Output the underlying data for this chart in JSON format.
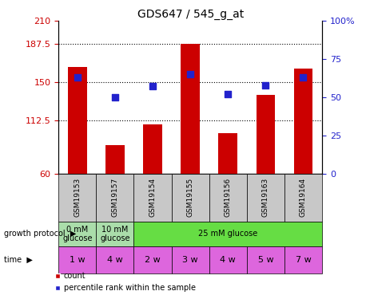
{
  "title": "GDS647 / 545_g_at",
  "samples": [
    "GSM19153",
    "GSM19157",
    "GSM19154",
    "GSM19155",
    "GSM19156",
    "GSM19163",
    "GSM19164"
  ],
  "bar_values": [
    165,
    88,
    108,
    187.5,
    100,
    137,
    163
  ],
  "blue_values": [
    63,
    50,
    57,
    65,
    52,
    58,
    63
  ],
  "ylim_left": [
    60,
    210
  ],
  "ylim_right": [
    0,
    100
  ],
  "yticks_left": [
    60,
    112.5,
    150,
    187.5,
    210
  ],
  "yticks_right": [
    0,
    25,
    50,
    75,
    100
  ],
  "bar_color": "#cc0000",
  "blue_color": "#2222cc",
  "grid_lines": [
    112.5,
    150,
    187.5
  ],
  "time_labels": [
    "1 w",
    "4 w",
    "2 w",
    "3 w",
    "4 w",
    "5 w",
    "7 w"
  ],
  "time_color": "#dd66dd",
  "sample_bg_color": "#c8c8c8",
  "protocol_data": [
    {
      "start": 0,
      "end": 1,
      "label": "0 mM\nglucose",
      "color": "#aaddaa"
    },
    {
      "start": 1,
      "end": 2,
      "label": "10 mM\nglucose",
      "color": "#aaddaa"
    },
    {
      "start": 2,
      "end": 7,
      "label": "25 mM glucose",
      "color": "#66dd44"
    }
  ],
  "left_label_color": "#cc0000",
  "right_label_color": "#2222cc",
  "figsize": [
    4.58,
    3.75
  ],
  "dpi": 100
}
